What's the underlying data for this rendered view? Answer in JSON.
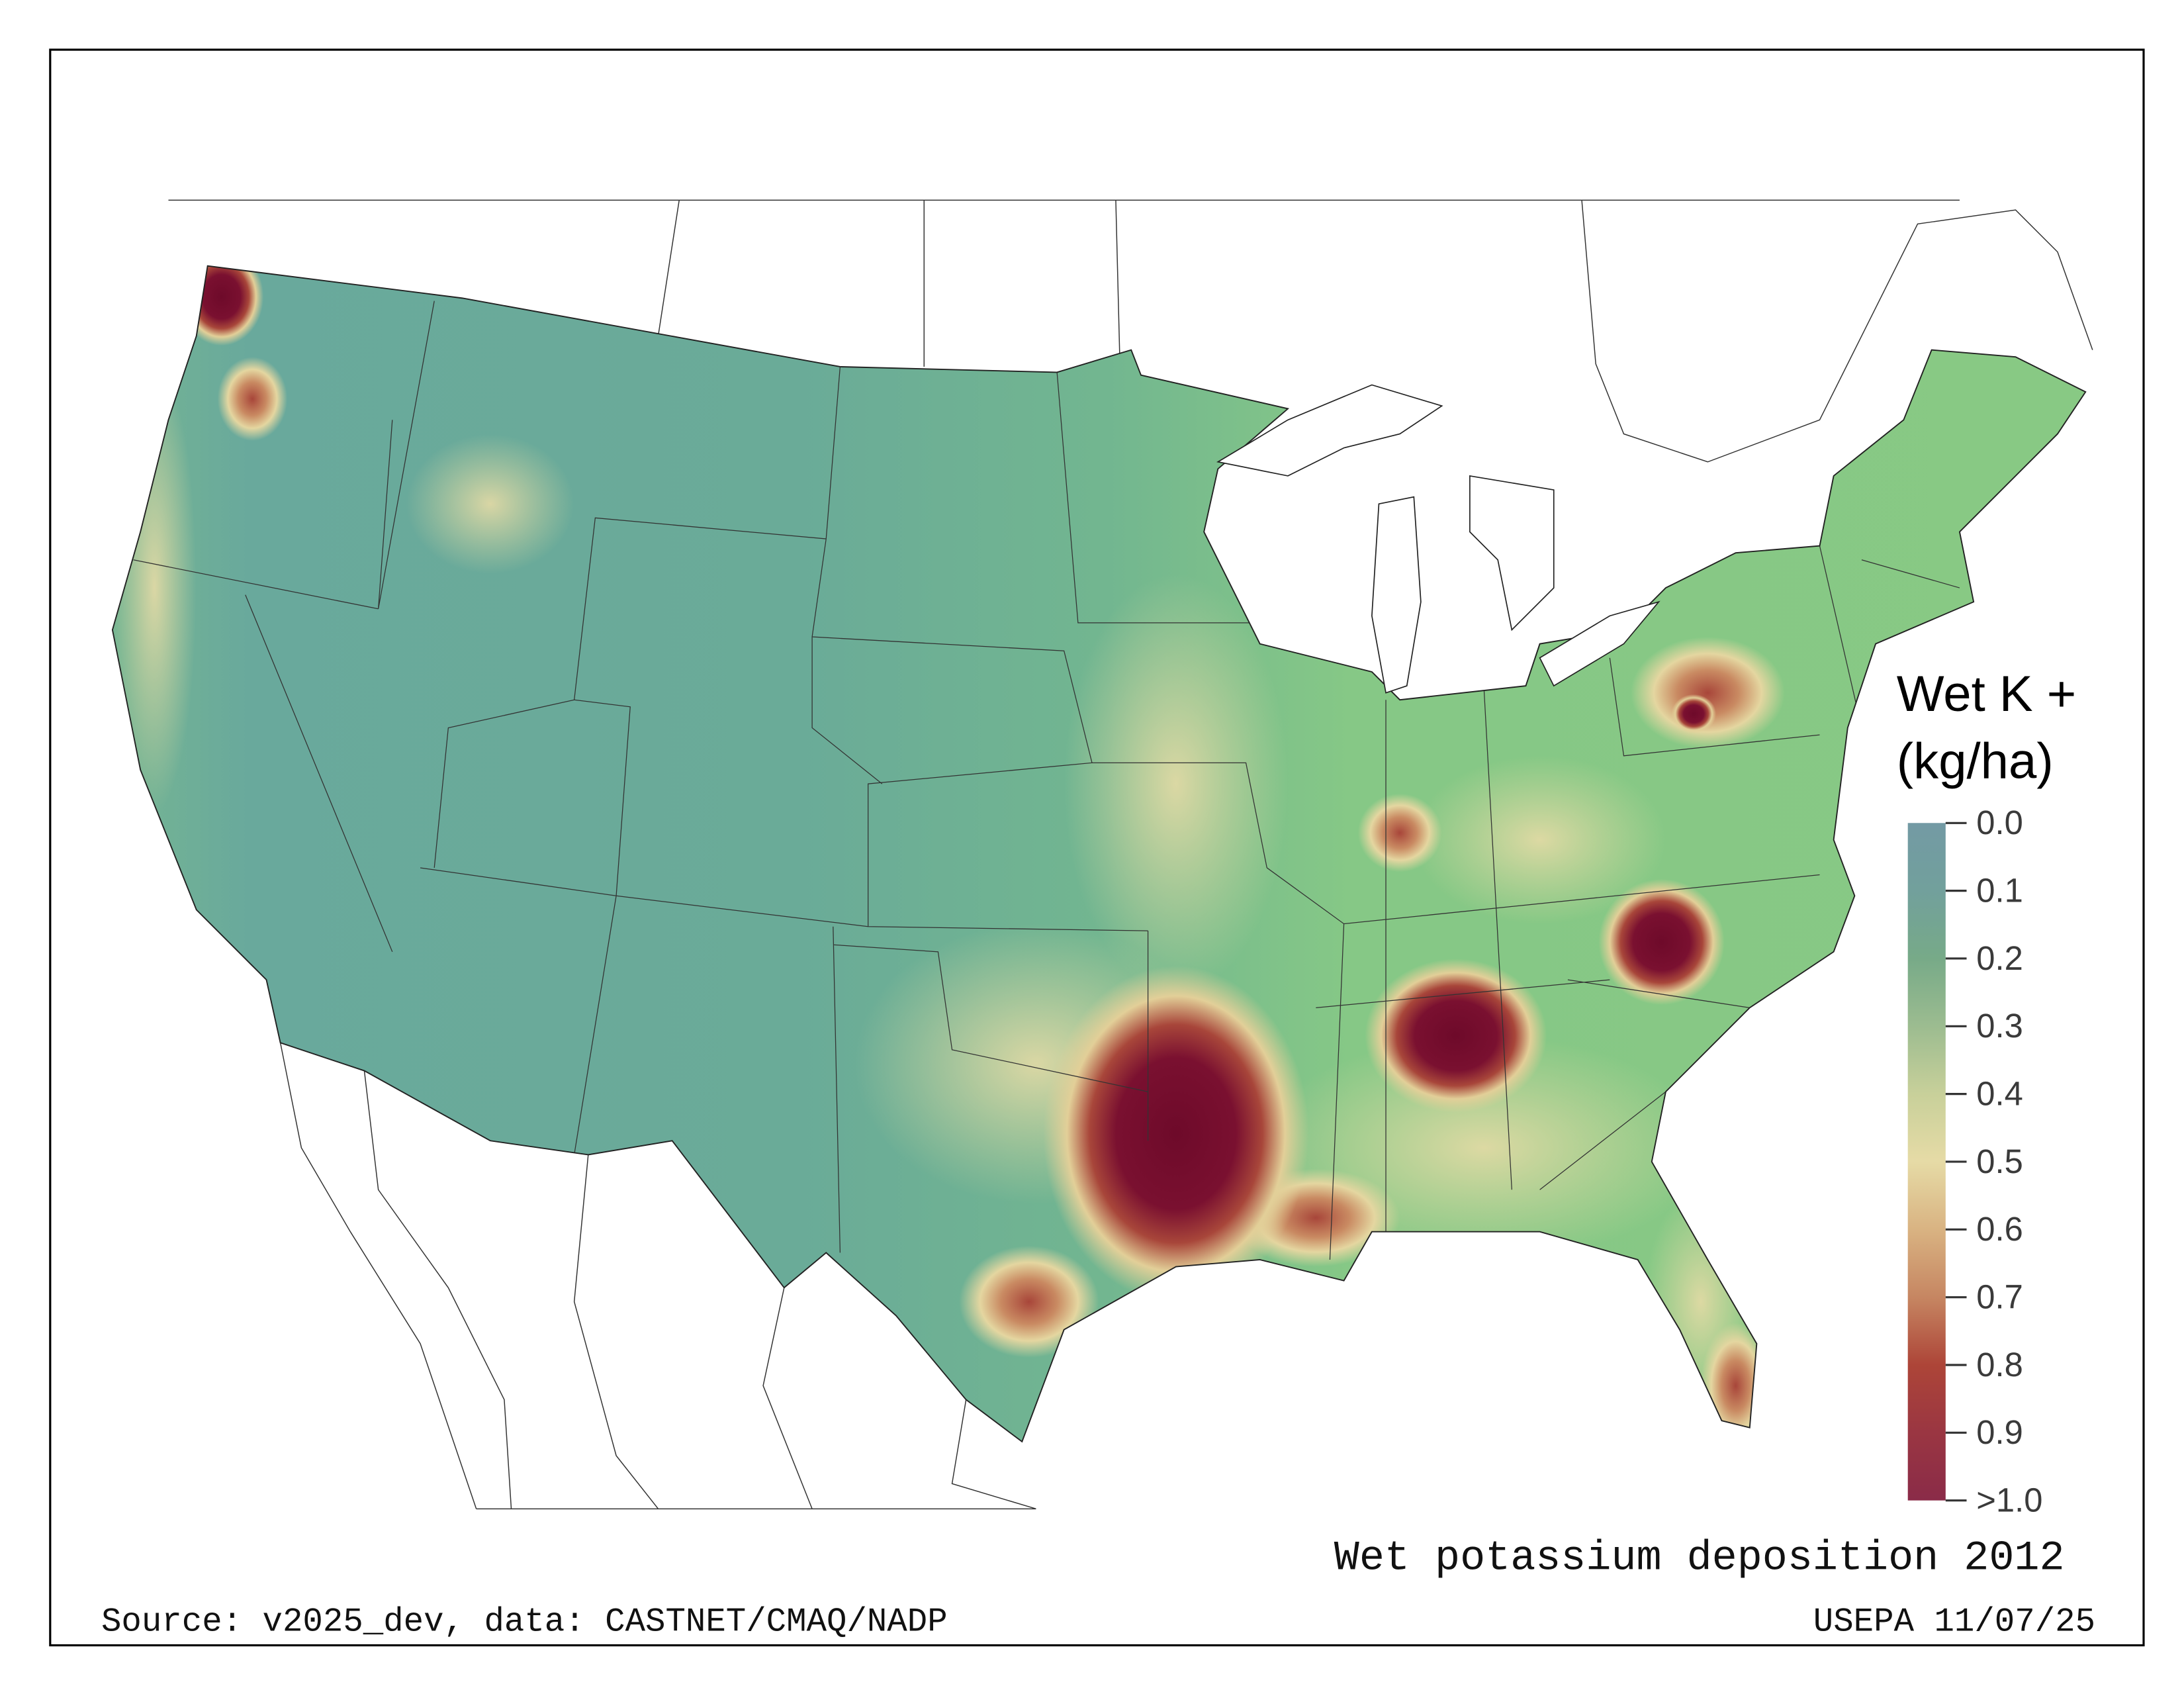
{
  "map": {
    "title": "Wet potassium deposition 2012",
    "source": "Source: v2025_dev, data: CASTNET/CMAQ/NADP",
    "credit": "USEPA 11/07/25",
    "region": "Contiguous United States"
  },
  "legend": {
    "title_line1": "Wet K +",
    "title_line2": "(kg/ha)",
    "ticks": [
      "0.0",
      "0.1",
      "0.2",
      "0.3",
      "0.4",
      "0.5",
      "0.6",
      "0.7",
      "0.8",
      "0.9",
      ">1.0"
    ],
    "range": [
      0.0,
      1.0
    ],
    "colors": [
      "#739aa4",
      "#72a09c",
      "#77aa88",
      "#9cbc90",
      "#c8d09a",
      "#e6dba6",
      "#d9b382",
      "#c68662",
      "#ad4538",
      "#9a3642",
      "#8a2b48"
    ]
  },
  "hotspots": [
    {
      "name": "Louisiana / East Texas",
      "level": ">1.0"
    },
    {
      "name": "Northern Alabama",
      "level": ">1.0"
    },
    {
      "name": "Western North Carolina",
      "level": ">1.0"
    },
    {
      "name": "Puget Sound, Washington",
      "level": ">1.0"
    },
    {
      "name": "Southeast Florida",
      "level": "0.9"
    },
    {
      "name": "Houston, Texas",
      "level": "0.9"
    },
    {
      "name": "Central Pennsylvania",
      "level": "0.8"
    },
    {
      "name": "Southern Indiana",
      "level": "0.7"
    }
  ]
}
